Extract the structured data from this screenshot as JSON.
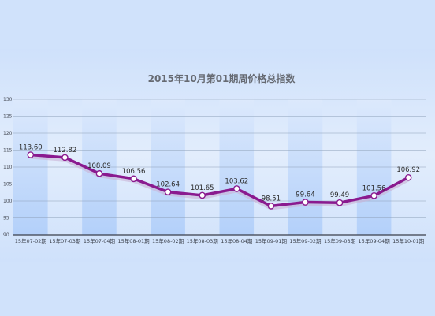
{
  "chart_data": {
    "type": "line",
    "title": "2015年10月第01期周价格总指数",
    "categories": [
      "15年07-02期",
      "15年07-03期",
      "15年07-04期",
      "15年08-01期",
      "15年08-02期",
      "15年08-03期",
      "15年08-04期",
      "15年09-01期",
      "15年09-02期",
      "15年09-03期",
      "15年09-04期",
      "15年10-01期"
    ],
    "series": [
      {
        "values": [
          113.6,
          112.82,
          108.09,
          106.56,
          102.64,
          101.65,
          103.62,
          98.51,
          99.64,
          99.49,
          101.56,
          106.92
        ]
      }
    ],
    "value_labels": [
      "113.60",
      "112.82",
      "108.09",
      "106.56",
      "102.64",
      "101.65",
      "103.62",
      "98.51",
      "99.64",
      "99.49",
      "101.56",
      "106.92"
    ],
    "ylim": [
      90,
      130
    ],
    "yticks": [
      "90",
      "95",
      "100",
      "105",
      "110",
      "115",
      "120",
      "125",
      "130"
    ],
    "grid": true,
    "colors": {
      "line": "#8a1a8f",
      "band_light": "#b7d3fb",
      "band_dark": "#c9ddfb",
      "background": "#d0e2fb"
    }
  }
}
